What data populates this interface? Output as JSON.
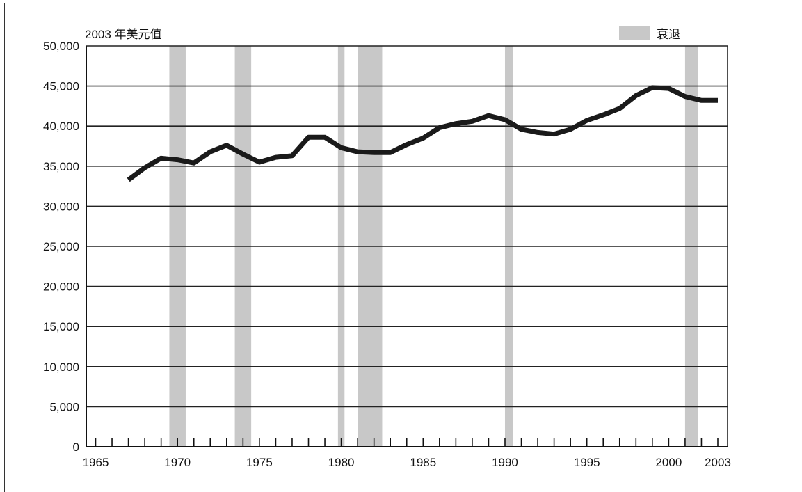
{
  "chart_data": {
    "type": "line",
    "unit_label": "2003 年美元值",
    "legend": {
      "label": "衰退",
      "color": "#c8c8c8",
      "placement": "top-right"
    },
    "x_ticks": [
      1965,
      1970,
      1975,
      1980,
      1985,
      1990,
      1995,
      2000,
      2003
    ],
    "y_ticks": [
      "0",
      "5,000",
      "10,000",
      "15,000",
      "20,000",
      "25,000",
      "30,000",
      "35,000",
      "40,000",
      "45,000",
      "50,000"
    ],
    "xlim": [
      1965,
      2003
    ],
    "ylim": [
      0,
      50000
    ],
    "grid": "horizontal",
    "line_color": "#1a1a1a",
    "recessions": [
      [
        1969.5,
        1970.5
      ],
      [
        1973.5,
        1974.5
      ],
      [
        1979.8,
        1980.2
      ],
      [
        1981.0,
        1982.5
      ],
      [
        1990.0,
        1990.5
      ],
      [
        2001.0,
        2001.8
      ]
    ],
    "series": [
      {
        "x": [
          1967,
          1968,
          1969,
          1970,
          1971,
          1972,
          1973,
          1974,
          1975,
          1976,
          1977,
          1978,
          1979,
          1980,
          1981,
          1982,
          1983,
          1984,
          1985,
          1986,
          1987,
          1988,
          1989,
          1990,
          1991,
          1992,
          1993,
          1994,
          1995,
          1996,
          1997,
          1998,
          1999,
          2000,
          2001,
          2002,
          2003
        ],
        "values": [
          33300,
          34800,
          36000,
          35800,
          35400,
          36800,
          37600,
          36500,
          35500,
          36100,
          36300,
          38600,
          38600,
          37300,
          36800,
          36700,
          36700,
          37700,
          38500,
          39800,
          40300,
          40600,
          41300,
          40800,
          39600,
          39200,
          39000,
          39600,
          40700,
          41400,
          42200,
          43800,
          44800,
          44700,
          43700,
          43200,
          43200
        ]
      }
    ]
  }
}
